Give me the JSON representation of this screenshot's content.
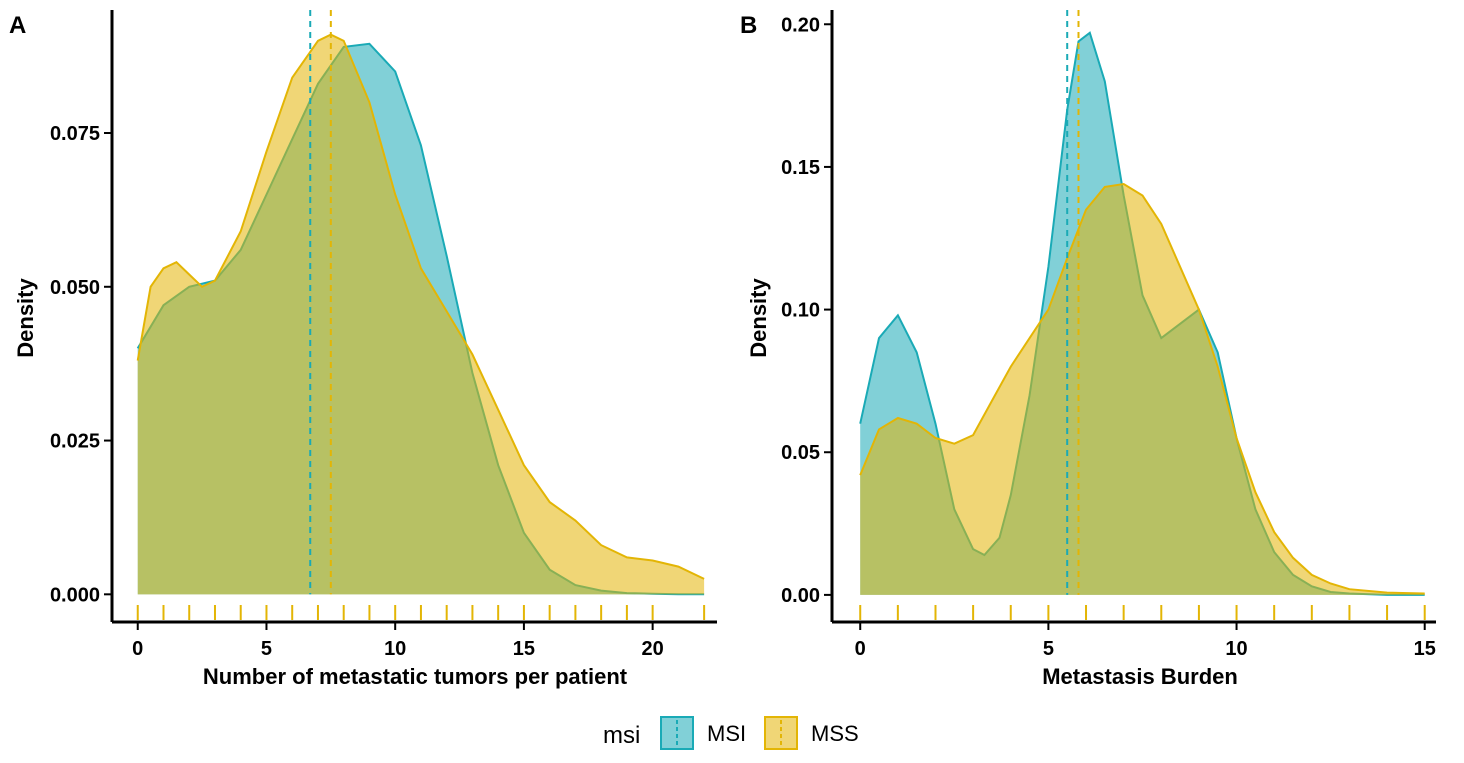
{
  "colors": {
    "MSI": "#1AAAB6",
    "MSI_fill": "#7FD6DD",
    "MSS": "#E3B505",
    "MSS_fill": "#F0D77E",
    "overlap": "#B3C672"
  },
  "legend": {
    "title": "msi",
    "items": [
      {
        "label": "MSI",
        "color_key": "MSI"
      },
      {
        "label": "MSS",
        "color_key": "MSS"
      }
    ]
  },
  "chart_data": [
    {
      "type": "area",
      "panel": "A",
      "xlabel": "Number of metastatic tumors per patient",
      "ylabel": "Density",
      "xlim": [
        -1,
        22.5
      ],
      "ylim": [
        -0.0045,
        0.095
      ],
      "xticks": [
        0,
        5,
        10,
        15,
        20
      ],
      "xtick_labels": [
        "0",
        "5",
        "10",
        "15",
        "20"
      ],
      "yticks": [
        0,
        0.025,
        0.05,
        0.075
      ],
      "ytick_labels": [
        "0.000",
        "0.025",
        "0.050",
        "0.075"
      ],
      "vlines": [
        {
          "series": "MSI",
          "x": 6.7
        },
        {
          "series": "MSS",
          "x": 7.5
        }
      ],
      "rug": [
        0,
        1,
        2,
        3,
        4,
        5,
        6,
        7,
        8,
        9,
        10,
        11,
        12,
        13,
        14,
        15,
        16,
        17,
        18,
        19,
        20,
        22
      ],
      "series": [
        {
          "name": "MSI",
          "x": [
            0,
            1,
            2,
            3,
            4,
            5,
            6,
            7,
            8,
            9,
            10,
            11,
            12,
            13,
            14,
            15,
            16,
            17,
            18,
            19,
            20,
            21,
            22
          ],
          "values": [
            0.04,
            0.047,
            0.05,
            0.051,
            0.056,
            0.065,
            0.074,
            0.083,
            0.089,
            0.0895,
            0.085,
            0.073,
            0.055,
            0.036,
            0.021,
            0.01,
            0.004,
            0.0015,
            0.0006,
            0.0002,
            0.0001,
            0.0,
            0.0
          ]
        },
        {
          "name": "MSS",
          "x": [
            0,
            0.5,
            1,
            1.5,
            2,
            2.5,
            3,
            4,
            5,
            6,
            7,
            7.5,
            8,
            9,
            10,
            11,
            12,
            13,
            14,
            15,
            16,
            17,
            18,
            19,
            20,
            21,
            22
          ],
          "values": [
            0.038,
            0.05,
            0.053,
            0.054,
            0.052,
            0.05,
            0.051,
            0.059,
            0.072,
            0.084,
            0.09,
            0.091,
            0.09,
            0.08,
            0.065,
            0.053,
            0.046,
            0.039,
            0.03,
            0.021,
            0.015,
            0.012,
            0.008,
            0.006,
            0.0055,
            0.0045,
            0.0025
          ]
        }
      ]
    },
    {
      "type": "area",
      "panel": "B",
      "xlabel": "Metastasis Burden",
      "ylabel": "Density",
      "xlim": [
        -0.75,
        15.3
      ],
      "ylim": [
        -0.0095,
        0.205
      ],
      "xticks": [
        0,
        5,
        10,
        15
      ],
      "xtick_labels": [
        "0",
        "5",
        "10",
        "15"
      ],
      "yticks": [
        0,
        0.05,
        0.1,
        0.15,
        0.2
      ],
      "ytick_labels": [
        "0.00",
        "0.05",
        "0.10",
        "0.15",
        "0.20"
      ],
      "vlines": [
        {
          "series": "MSI",
          "x": 5.5
        },
        {
          "series": "MSS",
          "x": 5.8
        }
      ],
      "rug": [
        0,
        1,
        2,
        3,
        4,
        5,
        6,
        7,
        8,
        9,
        10,
        11,
        12,
        13,
        14,
        15
      ],
      "series": [
        {
          "name": "MSI",
          "x": [
            0,
            0.5,
            1,
            1.5,
            2,
            2.5,
            3,
            3.3,
            3.7,
            4,
            4.5,
            5,
            5.5,
            5.8,
            6.1,
            6.5,
            7,
            7.5,
            8,
            8.5,
            9,
            9.5,
            10,
            10.5,
            11,
            11.5,
            12,
            12.5,
            13,
            14,
            15
          ],
          "values": [
            0.06,
            0.09,
            0.098,
            0.085,
            0.06,
            0.03,
            0.016,
            0.014,
            0.02,
            0.035,
            0.07,
            0.115,
            0.17,
            0.194,
            0.197,
            0.18,
            0.14,
            0.105,
            0.09,
            0.095,
            0.1,
            0.085,
            0.055,
            0.03,
            0.015,
            0.007,
            0.003,
            0.001,
            0.0005,
            0.0,
            0.0
          ]
        },
        {
          "name": "MSS",
          "x": [
            0,
            0.5,
            1,
            1.5,
            2,
            2.5,
            3,
            3.5,
            4,
            4.5,
            5,
            5.5,
            6,
            6.5,
            7,
            7.5,
            8,
            8.5,
            9,
            9.5,
            10,
            10.5,
            11,
            11.5,
            12,
            12.5,
            13,
            14,
            15
          ],
          "values": [
            0.042,
            0.058,
            0.062,
            0.06,
            0.055,
            0.053,
            0.056,
            0.068,
            0.08,
            0.09,
            0.1,
            0.118,
            0.135,
            0.143,
            0.144,
            0.14,
            0.13,
            0.115,
            0.1,
            0.08,
            0.055,
            0.036,
            0.022,
            0.013,
            0.007,
            0.004,
            0.002,
            0.0008,
            0.0005
          ]
        }
      ]
    }
  ]
}
